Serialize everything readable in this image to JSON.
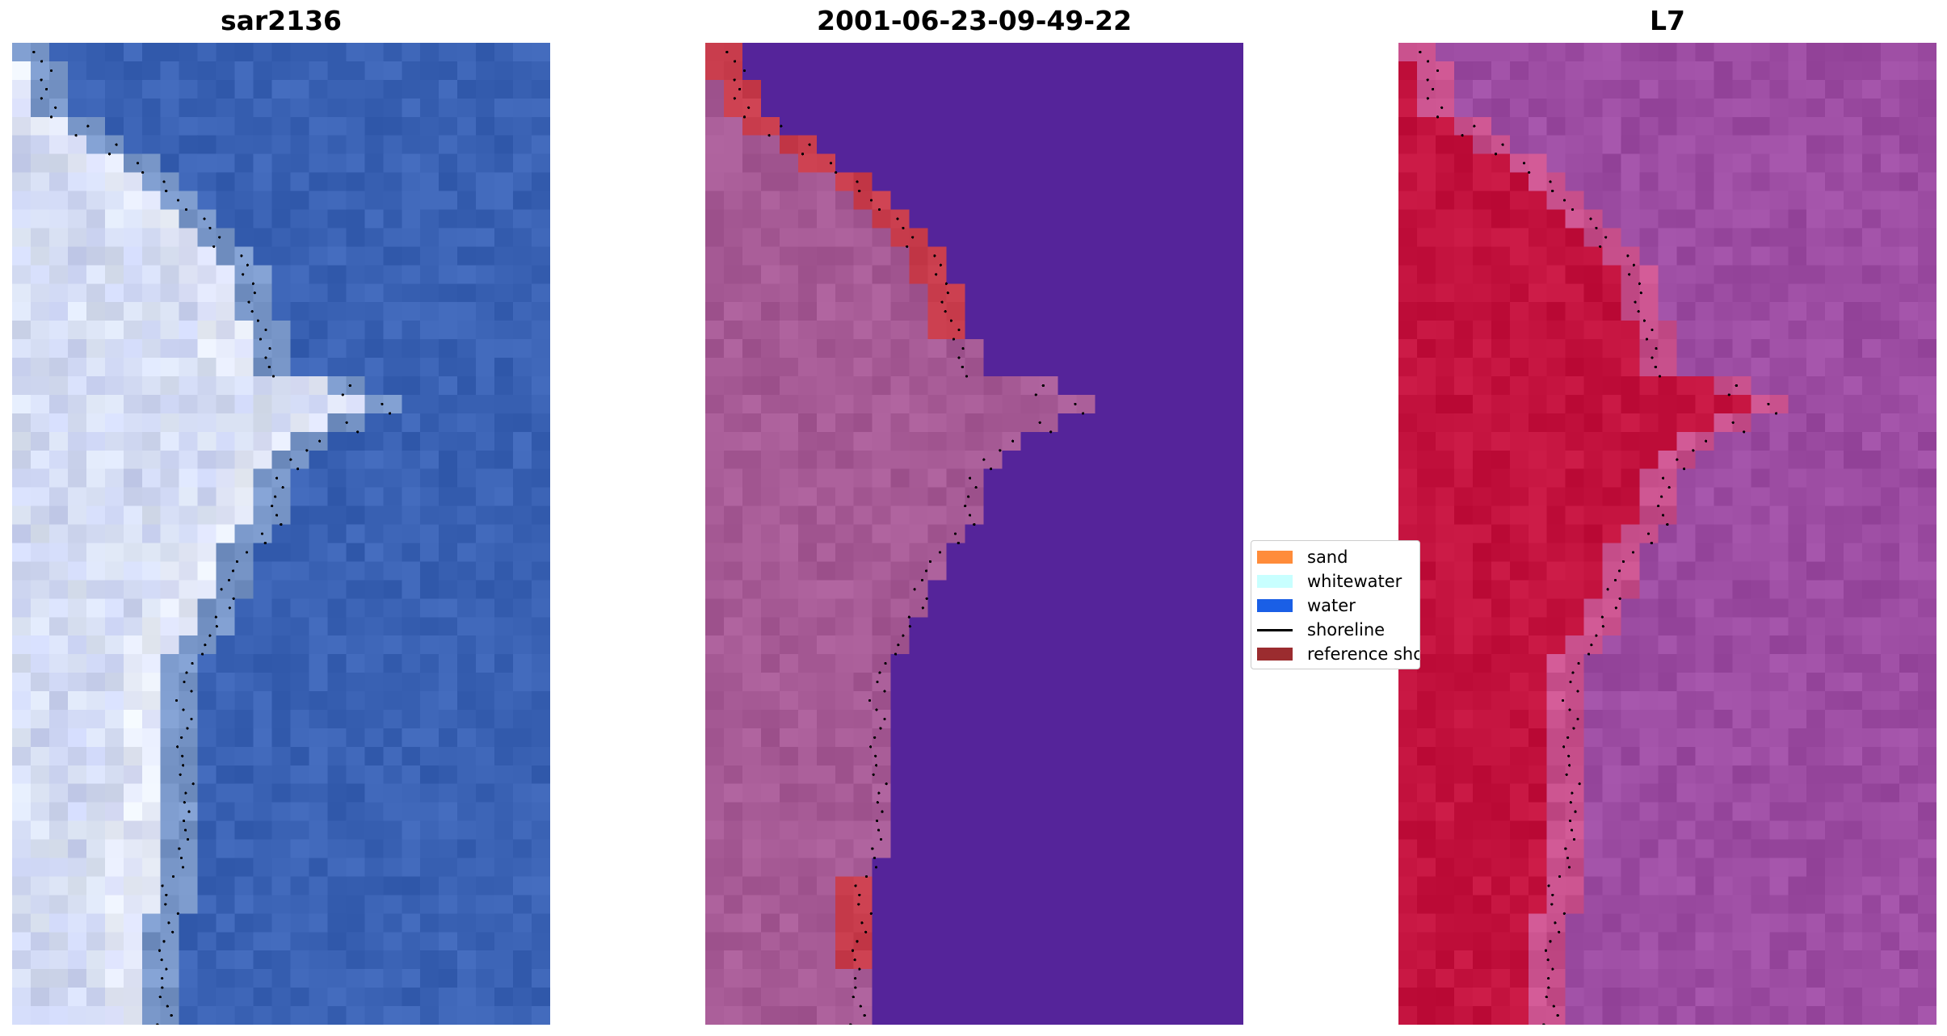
{
  "panels": [
    {
      "title": "sar2136",
      "style": "rgb"
    },
    {
      "title": "2001-06-23-09-49-22",
      "style": "classified"
    },
    {
      "title": "L7",
      "style": "index"
    }
  ],
  "legend": {
    "items": [
      {
        "label": "sand",
        "color": "#ff8c3a",
        "kind": "patch"
      },
      {
        "label": "whitewater",
        "color": "#c8ffff",
        "kind": "patch"
      },
      {
        "label": "water",
        "color": "#1a5fe6",
        "kind": "patch"
      },
      {
        "label": "shoreline",
        "color": "#000000",
        "kind": "line"
      },
      {
        "label": "reference shoreline buffer",
        "color": "#9b2c2f",
        "kind": "patch"
      }
    ]
  },
  "colors": {
    "water_rgb": "#3a62b4",
    "sand_rgb": "#dce4f2",
    "water_class": "#55249a",
    "land_class": "#a65a95",
    "buffer_class": "#c83c4c",
    "water_index": "#9c4ca2",
    "land_index": "#c3123e"
  }
}
